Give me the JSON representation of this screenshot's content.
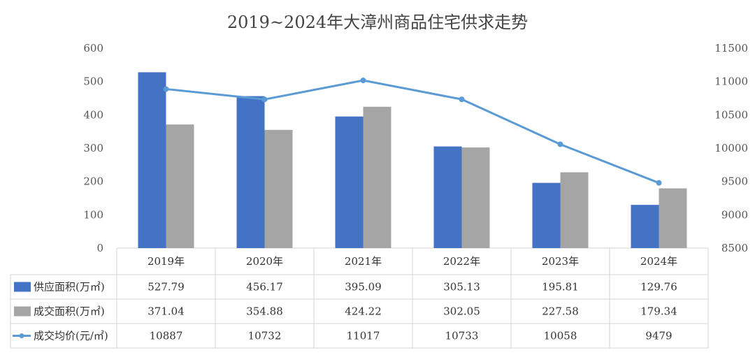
{
  "chart_data": {
    "type": "bar",
    "title": "2019~2024年大漳州商品住宅供求走势",
    "categories": [
      "2019年",
      "2020年",
      "2021年",
      "2022年",
      "2023年",
      "2024年"
    ],
    "y_left": {
      "min": 0,
      "max": 600,
      "ticks": [
        "0",
        "100",
        "200",
        "300",
        "400",
        "500",
        "600"
      ]
    },
    "y_right": {
      "min": 8500,
      "max": 11500,
      "ticks": [
        "8500",
        "9000",
        "9500",
        "10000",
        "10500",
        "11000",
        "11500"
      ]
    },
    "series": [
      {
        "name": "供应面积(万㎡)",
        "kind": "bar",
        "color": "#4472C4",
        "axis": "left",
        "values": [
          527.79,
          456.17,
          395.09,
          305.13,
          195.81,
          129.76
        ],
        "labels": [
          "527.79",
          "456.17",
          "395.09",
          "305.13",
          "195.81",
          "129.76"
        ]
      },
      {
        "name": "成交面积(万㎡)",
        "kind": "bar",
        "color": "#A5A5A5",
        "axis": "left",
        "values": [
          371.04,
          354.88,
          424.22,
          302.05,
          227.58,
          179.34
        ],
        "labels": [
          "371.04",
          "354.88",
          "424.22",
          "302.05",
          "227.58",
          "179.34"
        ]
      },
      {
        "name": "成交均价(元/㎡)",
        "kind": "line",
        "color": "#5B9BD5",
        "axis": "right",
        "values": [
          10887,
          10732,
          11017,
          10733,
          10058,
          9479
        ],
        "labels": [
          "10887",
          "10732",
          "11017",
          "10733",
          "10058",
          "9479"
        ]
      }
    ],
    "legend": "data-table-left",
    "grid": false
  }
}
